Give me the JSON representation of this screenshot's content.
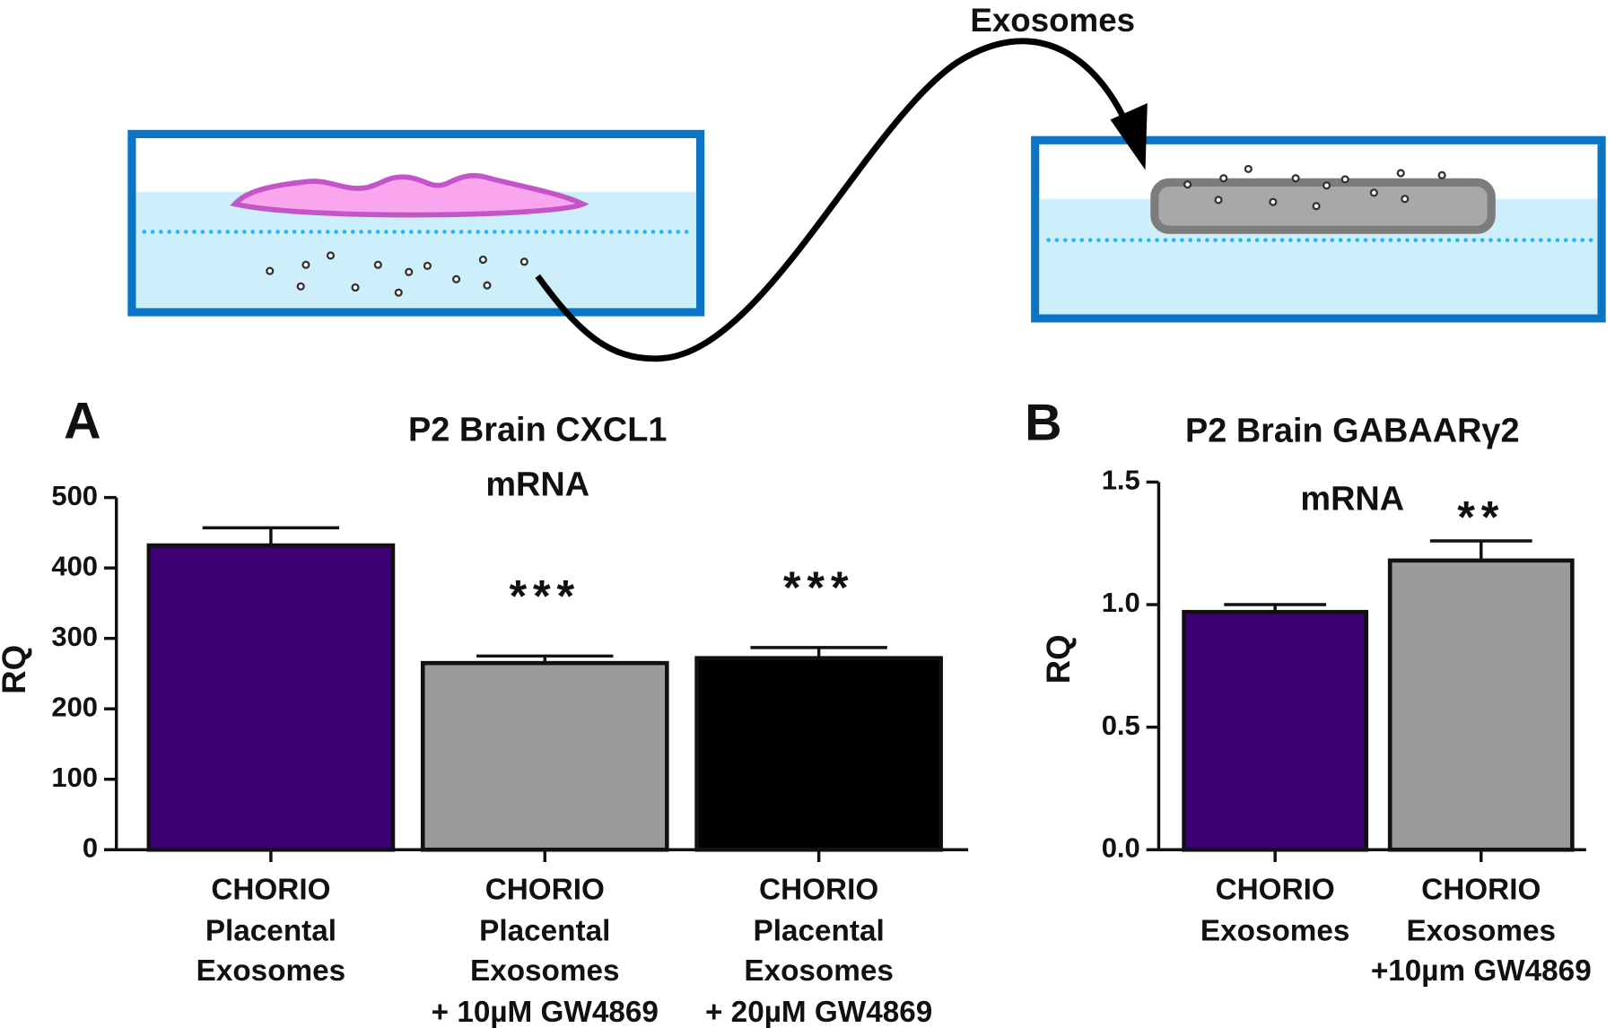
{
  "diagram": {
    "label": "Exosomes"
  },
  "chart_data": [
    {
      "type": "bar",
      "panel_label": "A",
      "title": "P2 Brain CXCL1\nmRNA",
      "ylabel": "RQ",
      "categories": [
        "CHORIO\nPlacental\nExosomes",
        "CHORIO\nPlacental\nExosomes\n+ 10µM GW4869",
        "CHORIO\nPlacental\nExosomes\n+ 20µM GW4869"
      ],
      "values": [
        432,
        265,
        272
      ],
      "errors": [
        25,
        10,
        15
      ],
      "colors": [
        "#3d0075",
        "#9b9b9b",
        "#000000"
      ],
      "annotations": [
        null,
        "***",
        "***"
      ],
      "ylim": [
        0,
        500
      ],
      "yticks": [
        0,
        100,
        200,
        300,
        400,
        500
      ]
    },
    {
      "type": "bar",
      "panel_label": "B",
      "title": "P2 Brain GABAARγ2\nmRNA",
      "ylabel": "RQ",
      "categories": [
        "CHORIO\nExosomes",
        "CHORIO\nExosomes\n+10µm GW4869"
      ],
      "values": [
        0.97,
        1.18
      ],
      "errors": [
        0.03,
        0.08
      ],
      "colors": [
        "#3d0075",
        "#9b9b9b"
      ],
      "annotations": [
        null,
        "**"
      ],
      "ylim": [
        0,
        1.5
      ],
      "yticks": [
        {
          "value": 0,
          "label": "0.0"
        },
        {
          "value": 0.5,
          "label": "0.5"
        },
        {
          "value": 1,
          "label": "1.0"
        },
        {
          "value": 1.5,
          "label": "1.5"
        }
      ]
    }
  ]
}
